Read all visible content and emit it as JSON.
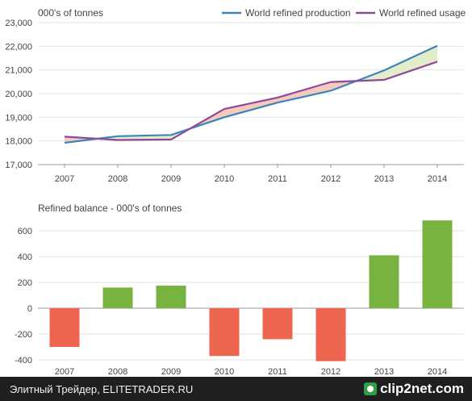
{
  "chart_data": [
    {
      "type": "line",
      "ylabel": "000's of tonnes",
      "categories": [
        "2007",
        "2008",
        "2009",
        "2010",
        "2011",
        "2012",
        "2013",
        "2014"
      ],
      "ylim": [
        17000,
        23000
      ],
      "yticks": [
        "17,000",
        "18,000",
        "19,000",
        "20,000",
        "21,000",
        "22,000",
        "23,000"
      ],
      "legend_position": "top-right",
      "fill_between_series": true,
      "series": [
        {
          "name": "World refined production",
          "color": "#3a86b8",
          "values": [
            17920,
            18200,
            18250,
            19000,
            19620,
            20120,
            20980,
            22020
          ]
        },
        {
          "name": "World refined usage",
          "color": "#8e4a9a",
          "values": [
            18180,
            18040,
            18060,
            19350,
            19830,
            20490,
            20580,
            21350
          ]
        }
      ],
      "fill_colors": {
        "usage_above": "#f6c9bf",
        "production_above": "#e4edc9"
      }
    },
    {
      "type": "bar",
      "title": "Refined balance - 000's of tonnes",
      "categories": [
        "2007",
        "2008",
        "2009",
        "2010",
        "2011",
        "2012",
        "2013",
        "2014"
      ],
      "values": [
        -300,
        160,
        175,
        -370,
        -240,
        -410,
        410,
        680
      ],
      "ylim": [
        -400,
        700
      ],
      "yticks": [
        "-400",
        "-200",
        "0",
        "200",
        "400",
        "600"
      ],
      "colors": {
        "positive": "#78b241",
        "negative": "#ef6650"
      }
    }
  ],
  "footer": {
    "caption": "Элитный Трейдер, ELITETRADER.RU",
    "brand": "clip2net.com"
  }
}
